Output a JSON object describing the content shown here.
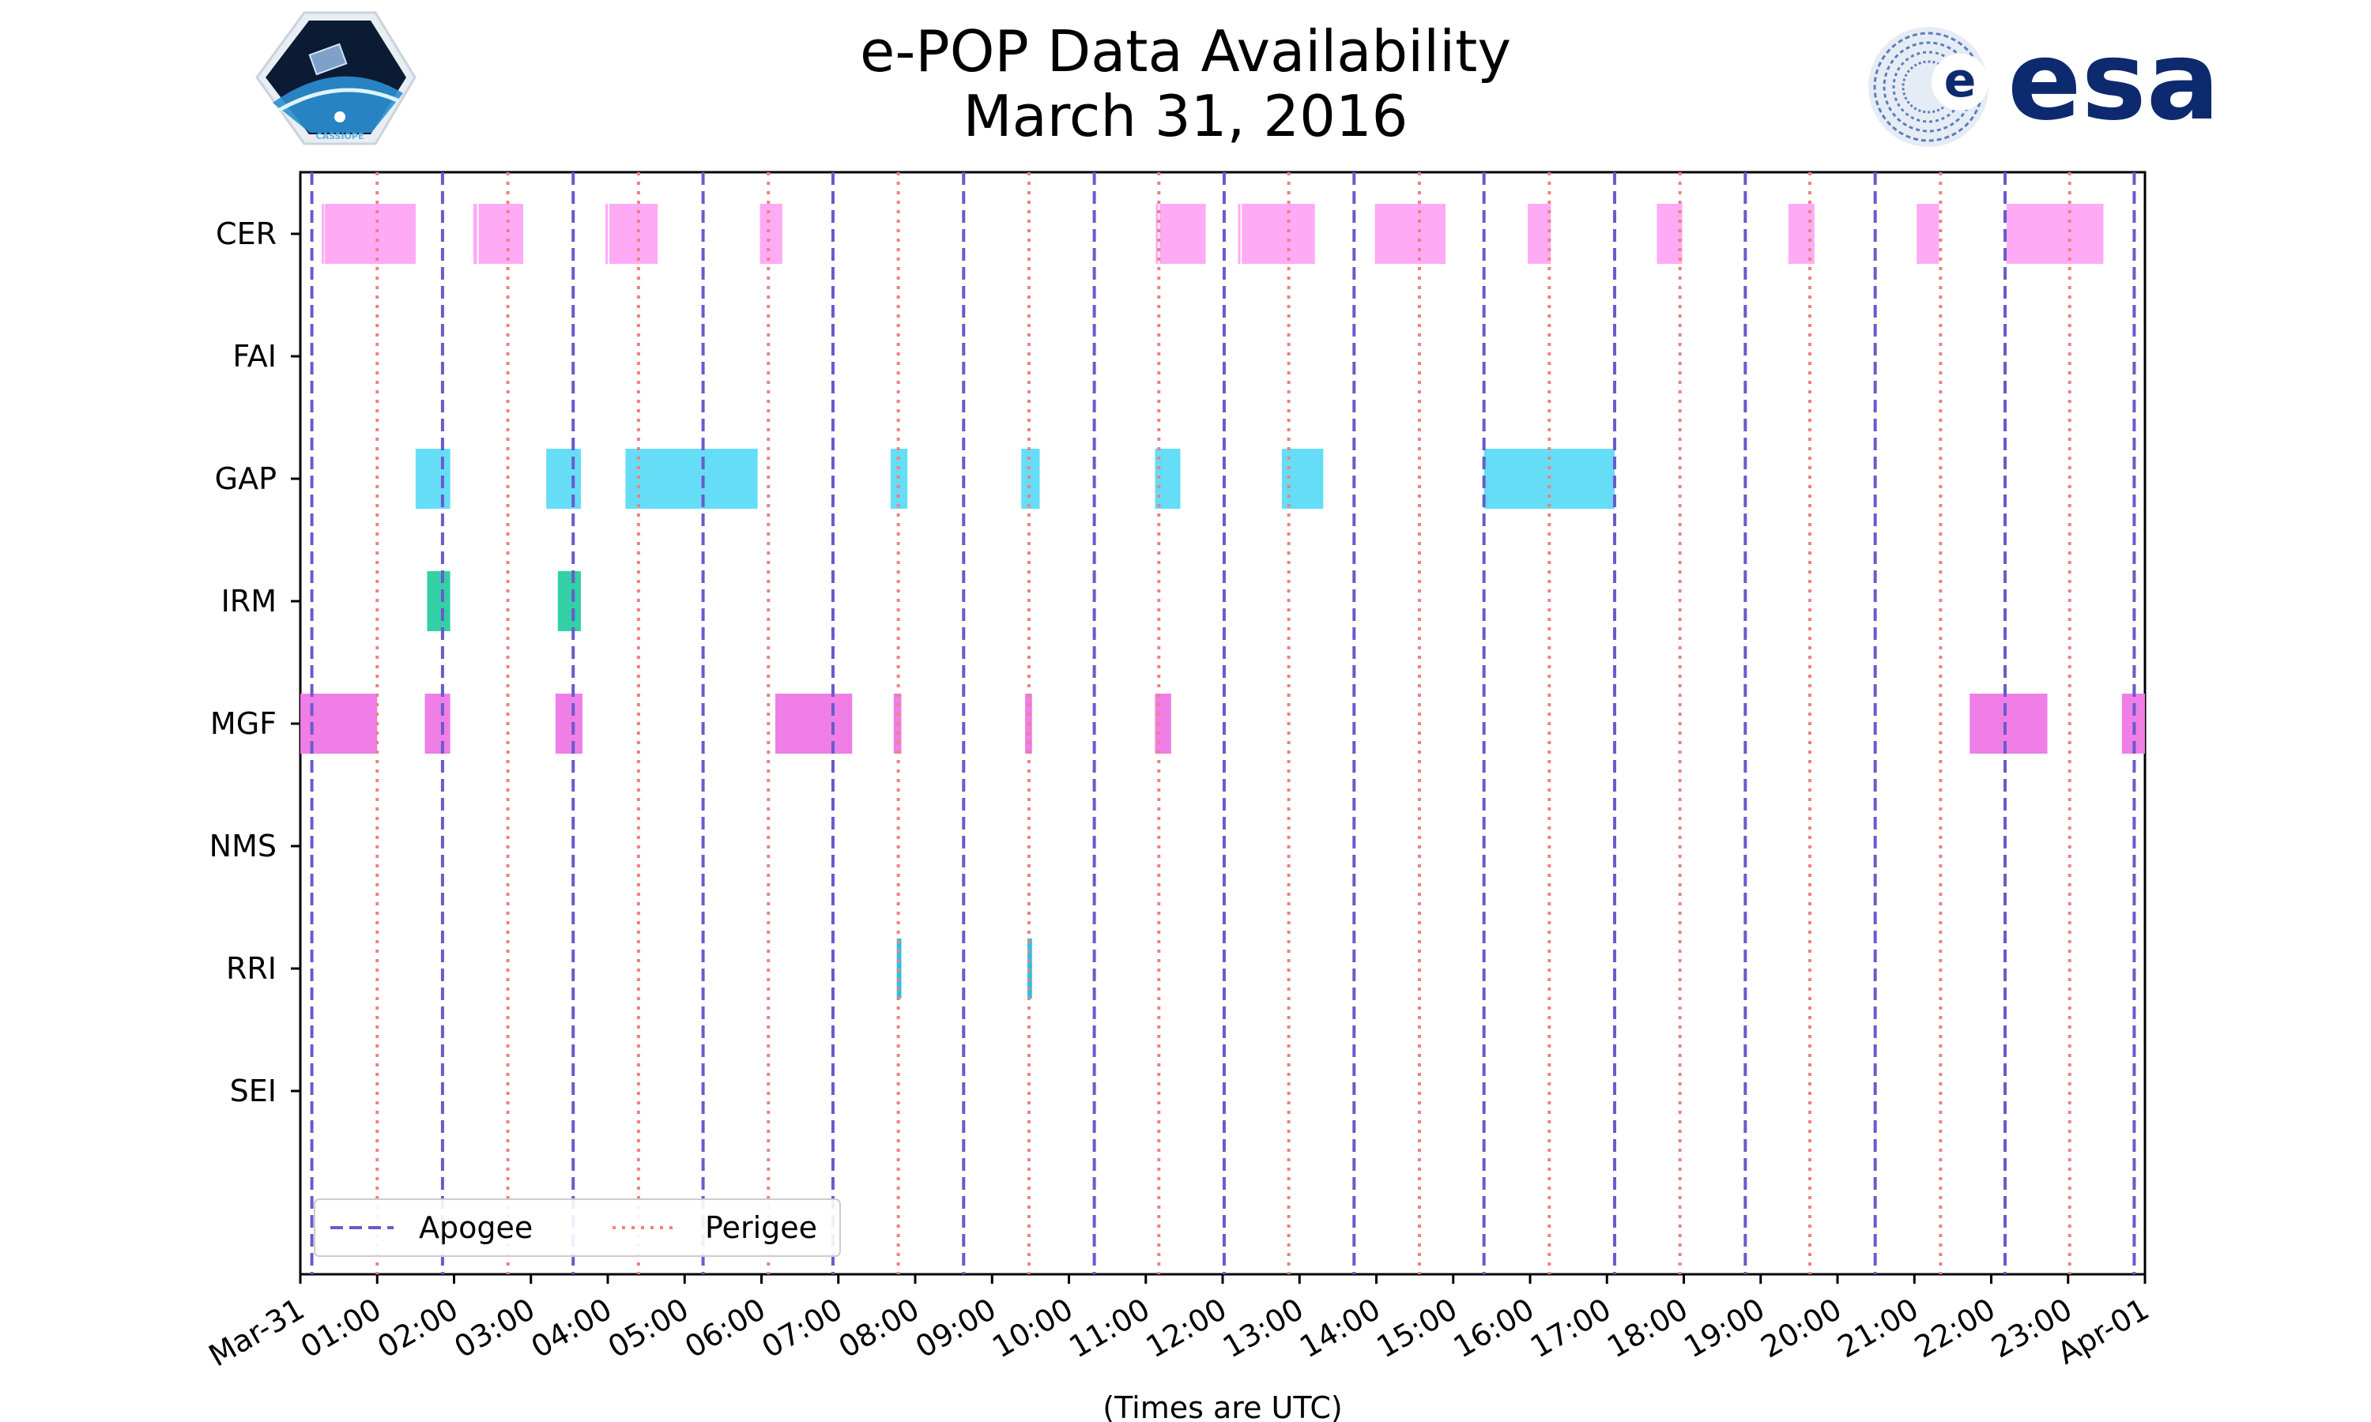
{
  "chart_data": {
    "type": "timeline",
    "title_line1": "e-POP Data Availability",
    "title_line2": "March 31, 2016",
    "xlabel": "(Times are UTC)",
    "x_range_hours": [
      0,
      24
    ],
    "x_tick_labels": [
      "Mar-31",
      "01:00",
      "02:00",
      "03:00",
      "04:00",
      "05:00",
      "06:00",
      "07:00",
      "08:00",
      "09:00",
      "10:00",
      "11:00",
      "12:00",
      "13:00",
      "14:00",
      "15:00",
      "16:00",
      "17:00",
      "18:00",
      "19:00",
      "20:00",
      "21:00",
      "22:00",
      "23:00",
      "Apr-01"
    ],
    "instruments": [
      "CER",
      "FAI",
      "GAP",
      "IRM",
      "MGF",
      "NMS",
      "RRI",
      "SEI"
    ],
    "apogee_hours": [
      0.15,
      1.85,
      3.55,
      5.24,
      6.93,
      8.63,
      10.33,
      12.02,
      13.71,
      15.4,
      17.1,
      18.8,
      20.49,
      22.18,
      23.86
    ],
    "perigee_hours": [
      1.0,
      2.7,
      4.4,
      6.09,
      7.78,
      9.48,
      11.17,
      12.86,
      14.56,
      16.25,
      17.95,
      19.64,
      21.34,
      23.02
    ],
    "series": [
      {
        "name": "CER",
        "color": "#ffaaf5",
        "segments": [
          [
            0.28,
            0.3
          ],
          [
            0.32,
            1.5
          ],
          [
            2.25,
            2.3
          ],
          [
            2.32,
            2.9
          ],
          [
            3.97,
            4.0
          ],
          [
            4.02,
            4.65
          ],
          [
            5.98,
            6.27
          ],
          [
            11.13,
            11.16
          ],
          [
            11.18,
            11.78
          ],
          [
            12.2,
            12.23
          ],
          [
            12.25,
            13.2
          ],
          [
            13.98,
            14.9
          ],
          [
            15.97,
            16.27
          ],
          [
            17.65,
            17.98
          ],
          [
            19.36,
            19.7
          ],
          [
            21.03,
            21.32
          ],
          [
            22.2,
            23.46
          ]
        ]
      },
      {
        "name": "FAI",
        "color": "#5cb85c",
        "segments": []
      },
      {
        "name": "GAP",
        "color": "#66ddf7",
        "segments": [
          [
            1.5,
            1.95
          ],
          [
            3.2,
            3.65
          ],
          [
            4.23,
            5.95
          ],
          [
            7.68,
            7.9
          ],
          [
            9.38,
            9.62
          ],
          [
            11.12,
            11.45
          ],
          [
            12.77,
            13.31
          ],
          [
            15.4,
            17.1
          ]
        ]
      },
      {
        "name": "IRM",
        "color": "#33d0a8",
        "segments": [
          [
            1.65,
            1.95
          ],
          [
            3.35,
            3.65
          ]
        ]
      },
      {
        "name": "MGF",
        "color": "#ef7ee6",
        "segments": [
          [
            0.0,
            1.0
          ],
          [
            1.62,
            1.95
          ],
          [
            3.32,
            3.67
          ],
          [
            6.18,
            7.18
          ],
          [
            7.72,
            7.82
          ],
          [
            9.43,
            9.52
          ],
          [
            11.12,
            11.33
          ],
          [
            21.72,
            22.73
          ],
          [
            23.7,
            24.0
          ]
        ]
      },
      {
        "name": "NMS",
        "color": "#9999ff",
        "segments": []
      },
      {
        "name": "RRI",
        "color": "#33bfe0",
        "segments": [
          [
            7.76,
            7.82
          ],
          [
            9.46,
            9.52
          ]
        ]
      },
      {
        "name": "SEI",
        "color": "#ffb266",
        "segments": []
      }
    ],
    "apogee_color": "#6a5acd",
    "perigee_color": "#f08080",
    "legend": {
      "placement": "lower-left",
      "entries": [
        "Apogee",
        "Perigee"
      ]
    }
  },
  "logos": {
    "cassiope": "CASSIOPE",
    "esa": "esa"
  }
}
